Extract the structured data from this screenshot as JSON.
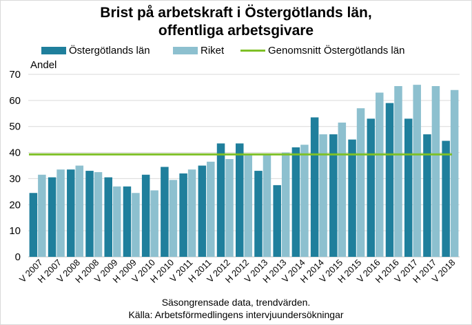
{
  "chart_data": {
    "type": "bar",
    "title_line1": "Brist på arbetskraft i Östergötlands län,",
    "title_line2": "offentliga arbetsgivare",
    "ylabel": "Andel",
    "ylim": [
      0,
      70
    ],
    "yticks": [
      0,
      10,
      20,
      30,
      40,
      50,
      60,
      70
    ],
    "grid": true,
    "legend_position": "top",
    "categories": [
      "V 2007",
      "H 2007",
      "V 2008",
      "H 2008",
      "V 2009",
      "H 2009",
      "V 2010",
      "H 2010",
      "V 2011",
      "H 2011",
      "V 2012",
      "H 2012",
      "V 2013",
      "H 2013",
      "V 2014",
      "H 2014",
      "V 2015",
      "H 2015",
      "V 2016",
      "H 2016",
      "V 2017",
      "H 2017",
      "V 2018"
    ],
    "series": [
      {
        "name": "Östergötlands län",
        "color": "#1f7f9c",
        "values": [
          24.5,
          30.5,
          33.5,
          33,
          30.5,
          27,
          31.5,
          34.5,
          32,
          35,
          43.5,
          43.5,
          33,
          27.5,
          42,
          53.5,
          47,
          45,
          53,
          59,
          53,
          47,
          44.5
        ]
      },
      {
        "name": "Riket",
        "color": "#8dc0cf",
        "values": [
          31.5,
          33.5,
          35,
          32.5,
          27,
          24.5,
          25.5,
          29.5,
          33.5,
          36.5,
          37.5,
          39.5,
          39,
          40,
          43,
          47,
          51.5,
          57,
          63,
          65.5,
          66,
          65.5,
          64
        ]
      }
    ],
    "reference_line": {
      "name": "Genomsnitt Östergötlands län",
      "value": 39.3,
      "color": "#7ec026"
    },
    "footer_line1": "Säsongrensade data, trendvärden.",
    "footer_line2": "Källa: Arbetsförmedlingens intervjuundersökningar"
  }
}
